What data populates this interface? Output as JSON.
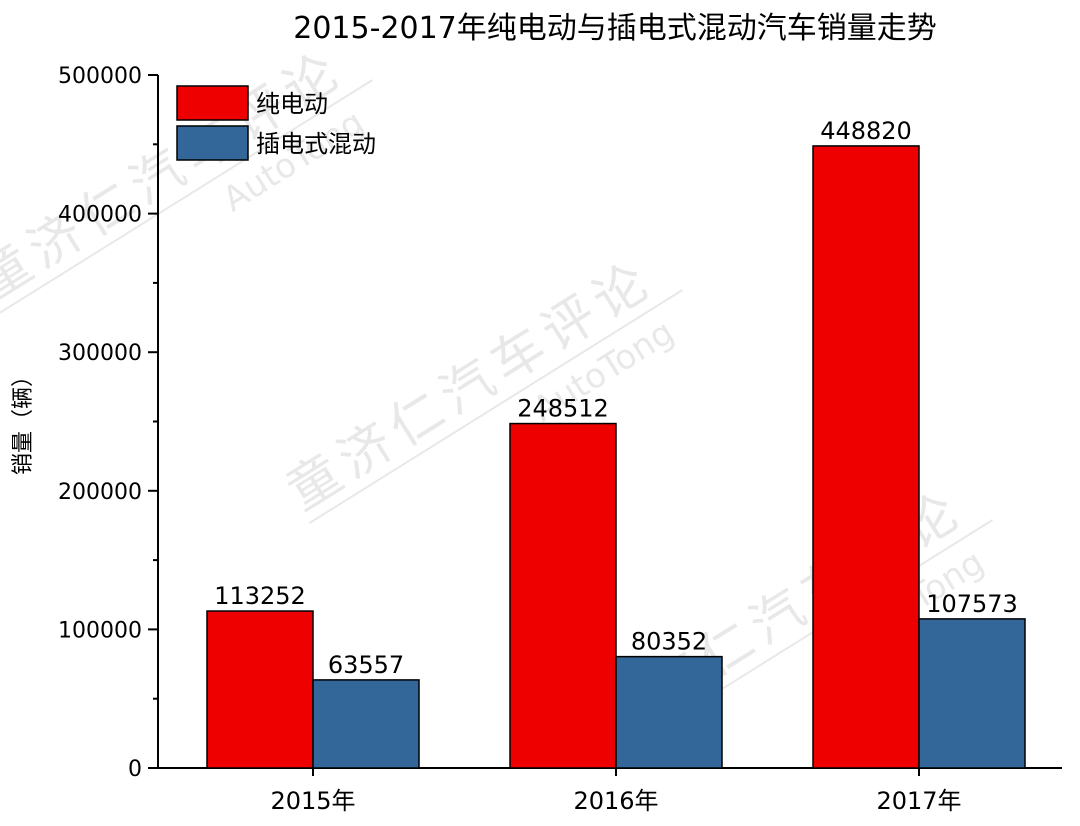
{
  "chart_data": {
    "type": "bar",
    "title": "2015-2017年纯电动与插电式混动汽车销量走势",
    "xlabel": "",
    "ylabel": "销量（辆）",
    "categories": [
      "2015年",
      "2016年",
      "2017年"
    ],
    "series": [
      {
        "name": "纯电动",
        "color": "#ee0000",
        "values": [
          113252,
          248512,
          448820
        ]
      },
      {
        "name": "插电式混动",
        "color": "#336699",
        "values": [
          63557,
          80352,
          107573
        ]
      }
    ],
    "ylim": [
      0,
      500000
    ],
    "yticks": [
      "0",
      "100000",
      "200000",
      "300000",
      "400000",
      "500000"
    ],
    "grid": false,
    "legend_position": "top-left",
    "show_data_labels": true
  },
  "watermark": {
    "brand": "童济仁汽车评论",
    "latin": "AutoTong"
  }
}
